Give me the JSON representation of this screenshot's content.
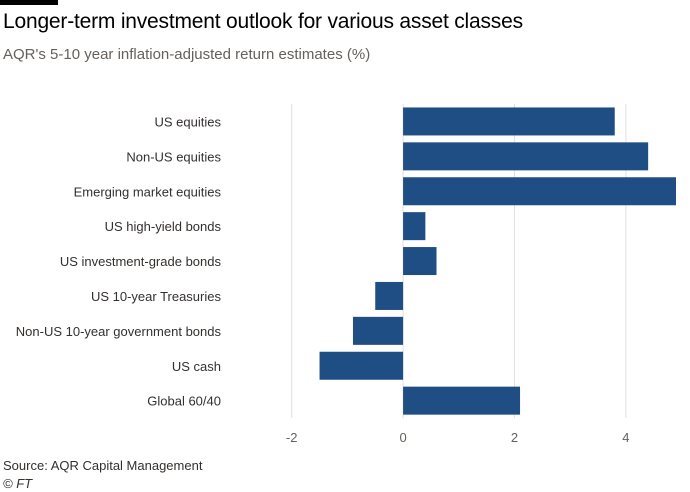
{
  "title": "Longer-term investment outlook for various asset classes",
  "subtitle": "AQR's 5-10 year inflation-adjusted return estimates (%)",
  "source": "Source: AQR Capital Management",
  "credit": "© FT",
  "colors": {
    "bar": "#1f4e84",
    "grid": "#e3dfdb",
    "zero_line": "#e3dfdb",
    "text": "#33302e",
    "muted": "#66605c"
  },
  "chart_data": {
    "type": "bar",
    "orientation": "horizontal",
    "categories": [
      "US equities",
      "Non-US equities",
      "Emerging market equities",
      "US high-yield bonds",
      "US investment-grade bonds",
      "US 10-year Treasuries",
      "Non-US 10-year government bonds",
      "US cash",
      "Global 60/40"
    ],
    "values": [
      3.8,
      4.4,
      4.9,
      0.4,
      0.6,
      -0.5,
      -0.9,
      -1.5,
      2.1
    ],
    "xlim": [
      -3,
      4.9
    ],
    "xticks": [
      -2,
      0,
      2,
      4
    ],
    "tick_labels": [
      "-2",
      "0",
      "2",
      "4"
    ],
    "grid": true,
    "title": "Longer-term investment outlook for various asset classes",
    "subtitle": "AQR's 5-10 year inflation-adjusted return estimates (%)"
  }
}
